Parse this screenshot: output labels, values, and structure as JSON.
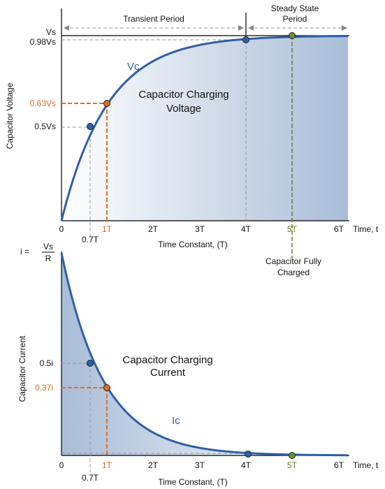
{
  "top_chart": {
    "y_axis_label": "Capacitor Voltage",
    "y_labels": [
      "Vs",
      "0.98Vs",
      "0.63Vs",
      "0.5Vs"
    ],
    "x_labels": [
      "0",
      "0.7T",
      "1T",
      "2T",
      "3T",
      "4T",
      "5T",
      "6T"
    ],
    "x_axis_end": "Time, t",
    "x_axis_title": "Time Constant, (T)",
    "curve_label": "Vc",
    "title_lines": [
      "Capacitor Charging",
      "Voltage"
    ],
    "transient_period": "Transient Period",
    "steady_state_lines": [
      "Steady State",
      "Period"
    ],
    "fully_charged_lines": [
      "Capacitor Fully",
      "Charged"
    ]
  },
  "bottom_chart": {
    "y_axis_label": "Capacitor Current",
    "initial_label": {
      "prefix": "i =",
      "numerator": "Vs",
      "denominator": "R"
    },
    "y_labels": [
      "0.5i",
      "0.37i"
    ],
    "x_labels": [
      "0",
      "0.7T",
      "1T",
      "2T",
      "3T",
      "4T",
      "5T",
      "6T"
    ],
    "x_axis_end": "Time, t",
    "x_axis_title": "Time Constant, (T)",
    "curve_label": "Ic",
    "title_lines": [
      "Capacitor Charging",
      "Current"
    ]
  }
}
